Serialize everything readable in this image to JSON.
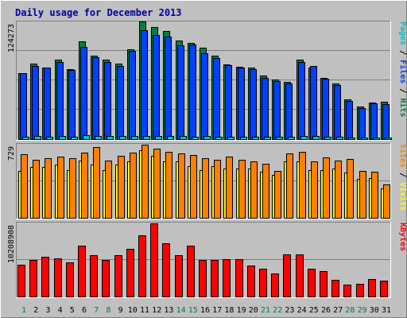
{
  "chart_data": [
    {
      "type": "bar",
      "title": "Daily usage for December 2013",
      "ylabel_parts": [
        {
          "text": "Pages",
          "color": "#00c0c0"
        },
        {
          "text": " / ",
          "color": "#000000"
        },
        {
          "text": "Files",
          "color": "#0040ff"
        },
        {
          "text": " / ",
          "color": "#000000"
        },
        {
          "text": "Hits",
          "color": "#008040"
        }
      ],
      "ymax_label": "124273",
      "ymax": 124273,
      "categories": [
        "1",
        "2",
        "3",
        "4",
        "5",
        "6",
        "7",
        "8",
        "9",
        "10",
        "11",
        "12",
        "13",
        "14",
        "15",
        "16",
        "17",
        "18",
        "19",
        "20",
        "21",
        "22",
        "23",
        "24",
        "25",
        "26",
        "27",
        "28",
        "29",
        "30",
        "31"
      ],
      "weekend_days": [
        "1",
        "7",
        "8",
        "14",
        "15",
        "21",
        "22",
        "28",
        "29"
      ],
      "series": [
        {
          "name": "Hits",
          "color": "#008040",
          "values": [
            70100,
            80000,
            75900,
            84200,
            73800,
            103200,
            88500,
            84200,
            79900,
            94600,
            124273,
            118100,
            114300,
            104500,
            101300,
            96600,
            88000,
            79000,
            76200,
            75700,
            67300,
            63200,
            60200,
            84200,
            75900,
            64900,
            59000,
            42100,
            34700,
            38700,
            39800
          ]
        },
        {
          "name": "Files",
          "color": "#0040ff",
          "values": [
            69400,
            77300,
            75200,
            81300,
            73000,
            97400,
            86600,
            81700,
            77400,
            93600,
            115300,
            110000,
            108300,
            99300,
            99700,
            91100,
            85400,
            78200,
            75400,
            73600,
            65000,
            61400,
            59100,
            81500,
            77500,
            63600,
            57400,
            40200,
            32800,
            37500,
            36600
          ]
        },
        {
          "name": "Pages",
          "color": "#00c0c0",
          "values": [
            2500,
            3000,
            2500,
            3000,
            2500,
            4000,
            3500,
            3500,
            3000,
            3000,
            3500,
            3000,
            3000,
            3000,
            2500,
            3000,
            2500,
            2500,
            2500,
            2500,
            2500,
            2500,
            2500,
            3000,
            3000,
            2500,
            2500,
            2000,
            2000,
            2000,
            2000
          ]
        }
      ]
    },
    {
      "type": "bar",
      "ylabel_parts": [
        {
          "text": "Sites",
          "color": "#ff8000"
        },
        {
          "text": " / ",
          "color": "#000000"
        },
        {
          "text": "Visits",
          "color": "#ffff00"
        }
      ],
      "ymax_label": "729",
      "ymax": 729,
      "categories": [
        "1",
        "2",
        "3",
        "4",
        "5",
        "6",
        "7",
        "8",
        "9",
        "10",
        "11",
        "12",
        "13",
        "14",
        "15",
        "16",
        "17",
        "18",
        "19",
        "20",
        "21",
        "22",
        "23",
        "24",
        "25",
        "26",
        "27",
        "28",
        "29",
        "30",
        "31"
      ],
      "series": [
        {
          "name": "Visits",
          "color": "#ffff00",
          "values": [
            470,
            511,
            511,
            530,
            475,
            570,
            532,
            475,
            530,
            560,
            677,
            620,
            560,
            560,
            513,
            475,
            514,
            495,
            495,
            495,
            457,
            431,
            560,
            560,
            472,
            472,
            495,
            450,
            392,
            396,
            290
          ]
        },
        {
          "name": "Sites",
          "color": "#ff8000",
          "values": [
            630,
            576,
            592,
            614,
            594,
            651,
            709,
            570,
            615,
            652,
            729,
            690,
            660,
            640,
            624,
            592,
            576,
            607,
            575,
            560,
            541,
            470,
            643,
            656,
            566,
            600,
            570,
            590,
            470,
            463,
            335
          ]
        }
      ]
    },
    {
      "type": "bar",
      "ylabel_parts": [
        {
          "text": "KBytes",
          "color": "#ff0000"
        }
      ],
      "ymax_label": "10208908",
      "ymax": 10208908,
      "categories": [
        "1",
        "2",
        "3",
        "4",
        "5",
        "6",
        "7",
        "8",
        "9",
        "10",
        "11",
        "12",
        "13",
        "14",
        "15",
        "16",
        "17",
        "18",
        "19",
        "20",
        "21",
        "22",
        "23",
        "24",
        "25",
        "26",
        "27",
        "28",
        "29",
        "30",
        "31"
      ],
      "series": [
        {
          "name": "KBytes",
          "color": "#ff0000",
          "values": [
            4450000,
            5100000,
            5600000,
            5350000,
            4800000,
            7150000,
            5750000,
            5100000,
            5750000,
            6700000,
            8550000,
            10208908,
            7400000,
            5750000,
            7150000,
            5100000,
            5100000,
            5200000,
            5200000,
            4300000,
            3850000,
            3200000,
            5900000,
            5900000,
            3850000,
            3500000,
            2300000,
            1650000,
            1800000,
            2450000,
            2250000
          ]
        }
      ]
    }
  ]
}
